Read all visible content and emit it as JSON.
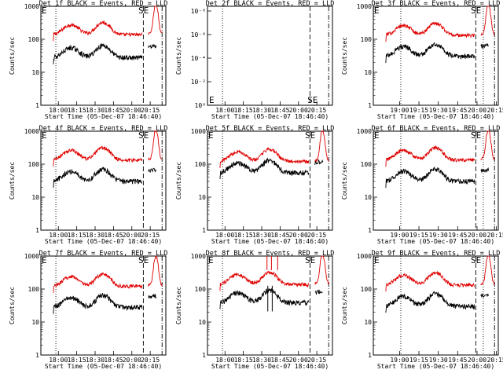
{
  "chart_data": {
    "type": "line",
    "x_time_ticks": [
      "18:00",
      "18:15",
      "18:30",
      "18:45",
      "20:00",
      "20:15"
    ],
    "x_time_ticks_alt": [
      "19:00",
      "19:15",
      "19:30",
      "19:45",
      "20:00",
      "20:15"
    ],
    "xlabel": "Start Time (05-Dec-07 18:46:40)",
    "ylabel": "Counts/sec",
    "y_scale": "log",
    "ylim": [
      1,
      1000
    ],
    "y_ticks": [
      "1",
      "10",
      "100",
      "1000"
    ],
    "y_ticks_empty": [
      "10⁻⁸",
      "10⁻⁶",
      "10⁻⁴",
      "10⁻²",
      "10⁰"
    ],
    "corner_labels": {
      "left": "E",
      "right": "SE"
    },
    "colors": {
      "events": "#000000",
      "lld": "#e00000"
    },
    "panels": [
      {
        "title": "Det 1f BLACK = Events, RED = LLD",
        "ticks": "a",
        "events_level": 50,
        "lld_level": 250,
        "empty": false,
        "spikes": false
      },
      {
        "title": "Det 2f BLACK = Events, RED = LLD",
        "ticks": "a",
        "empty": true
      },
      {
        "title": "Det 3f BLACK = Events, RED = LLD",
        "ticks": "b",
        "events_level": 55,
        "lld_level": 240,
        "empty": false,
        "spikes": false
      },
      {
        "title": "Det 4f BLACK = Events, RED = LLD",
        "ticks": "a",
        "events_level": 55,
        "lld_level": 240,
        "empty": false,
        "spikes": false
      },
      {
        "title": "Det 5f BLACK = Events, RED = LLD",
        "ticks": "a",
        "events_level": 100,
        "lld_level": 220,
        "empty": false,
        "spikes": false
      },
      {
        "title": "Det 6f BLACK = Events, RED = LLD",
        "ticks": "b",
        "events_level": 55,
        "lld_level": 240,
        "empty": false,
        "spikes": false
      },
      {
        "title": "Det 7f BLACK = Events, RED = LLD",
        "ticks": "a",
        "events_level": 50,
        "lld_level": 220,
        "empty": false,
        "spikes": false
      },
      {
        "title": "Det 8f BLACK = Events, RED = LLD",
        "ticks": "a",
        "events_level": 70,
        "lld_level": 250,
        "empty": false,
        "spikes": true
      },
      {
        "title": "Det 9f BLACK = Events, RED = LLD",
        "ticks": "b",
        "events_level": 55,
        "lld_level": 240,
        "empty": false,
        "spikes": false
      }
    ]
  }
}
